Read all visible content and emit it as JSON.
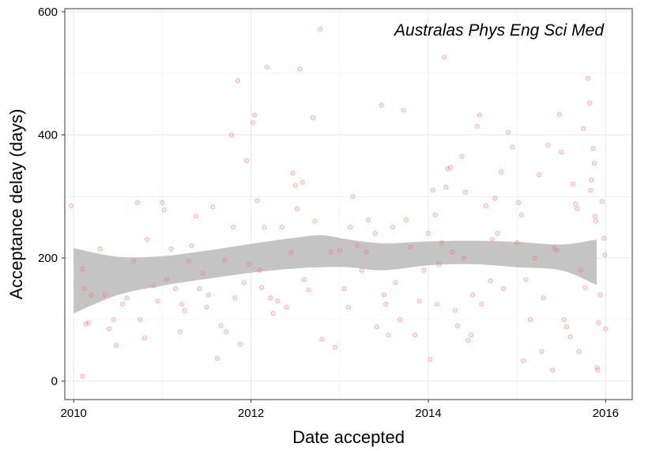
{
  "chart_data": {
    "type": "scatter",
    "annotation": "Australas Phys Eng Sci Med",
    "xlabel": "Date accepted",
    "ylabel": "Acceptance delay (days)",
    "x_ticks": [
      "2010",
      "2012",
      "2014",
      "2016"
    ],
    "y_ticks": [
      "0",
      "200",
      "400",
      "600"
    ],
    "xlim": [
      2009.9,
      2016.3
    ],
    "ylim": [
      -30,
      605
    ],
    "grid": true,
    "colors": {
      "points": "#f8766d",
      "band": "#c4c4c4",
      "border": "#666666",
      "grid": "#ebebeb"
    },
    "smooth_band": {
      "x": [
        2010.0,
        2010.5,
        2011.0,
        2011.5,
        2012.0,
        2012.5,
        2012.8,
        2013.1,
        2013.5,
        2014.0,
        2014.5,
        2015.0,
        2015.5,
        2015.9
      ],
      "upper": [
        216,
        202,
        203,
        212,
        223,
        233,
        237,
        230,
        224,
        227,
        228,
        226,
        222,
        230
      ],
      "lower": [
        110,
        140,
        155,
        166,
        176,
        183,
        185,
        185,
        180,
        188,
        190,
        185,
        180,
        156
      ]
    },
    "points": [
      {
        "x": 2009.97,
        "y": 285
      },
      {
        "x": 2010.1,
        "y": 182
      },
      {
        "x": 2010.12,
        "y": 150
      },
      {
        "x": 2010.14,
        "y": 93
      },
      {
        "x": 2010.17,
        "y": 95
      },
      {
        "x": 2010.1,
        "y": 8
      },
      {
        "x": 2010.2,
        "y": 140
      },
      {
        "x": 2010.3,
        "y": 215
      },
      {
        "x": 2010.35,
        "y": 140
      },
      {
        "x": 2010.4,
        "y": 85
      },
      {
        "x": 2010.45,
        "y": 100
      },
      {
        "x": 2010.48,
        "y": 58
      },
      {
        "x": 2010.55,
        "y": 125
      },
      {
        "x": 2010.6,
        "y": 135
      },
      {
        "x": 2010.68,
        "y": 195
      },
      {
        "x": 2010.72,
        "y": 290
      },
      {
        "x": 2010.75,
        "y": 100
      },
      {
        "x": 2010.8,
        "y": 70
      },
      {
        "x": 2010.83,
        "y": 230
      },
      {
        "x": 2010.9,
        "y": 155
      },
      {
        "x": 2010.95,
        "y": 130
      },
      {
        "x": 2011.0,
        "y": 290
      },
      {
        "x": 2011.02,
        "y": 278
      },
      {
        "x": 2011.05,
        "y": 165
      },
      {
        "x": 2011.1,
        "y": 215
      },
      {
        "x": 2011.15,
        "y": 150
      },
      {
        "x": 2011.2,
        "y": 80
      },
      {
        "x": 2011.22,
        "y": 125
      },
      {
        "x": 2011.25,
        "y": 115
      },
      {
        "x": 2011.3,
        "y": 195
      },
      {
        "x": 2011.33,
        "y": 220
      },
      {
        "x": 2011.38,
        "y": 268
      },
      {
        "x": 2011.42,
        "y": 150
      },
      {
        "x": 2011.46,
        "y": 175
      },
      {
        "x": 2011.5,
        "y": 120
      },
      {
        "x": 2011.52,
        "y": 140
      },
      {
        "x": 2011.57,
        "y": 283
      },
      {
        "x": 2011.62,
        "y": 37
      },
      {
        "x": 2011.66,
        "y": 90
      },
      {
        "x": 2011.7,
        "y": 196
      },
      {
        "x": 2011.72,
        "y": 80
      },
      {
        "x": 2011.78,
        "y": 400
      },
      {
        "x": 2011.8,
        "y": 250
      },
      {
        "x": 2011.82,
        "y": 135
      },
      {
        "x": 2011.85,
        "y": 488
      },
      {
        "x": 2011.88,
        "y": 60
      },
      {
        "x": 2011.92,
        "y": 160
      },
      {
        "x": 2011.95,
        "y": 358
      },
      {
        "x": 2011.98,
        "y": 190
      },
      {
        "x": 2012.02,
        "y": 420
      },
      {
        "x": 2012.04,
        "y": 432
      },
      {
        "x": 2012.07,
        "y": 293
      },
      {
        "x": 2012.1,
        "y": 180
      },
      {
        "x": 2012.12,
        "y": 152
      },
      {
        "x": 2012.15,
        "y": 250
      },
      {
        "x": 2012.18,
        "y": 510
      },
      {
        "x": 2012.22,
        "y": 135
      },
      {
        "x": 2012.25,
        "y": 110
      },
      {
        "x": 2012.3,
        "y": 130
      },
      {
        "x": 2012.35,
        "y": 250
      },
      {
        "x": 2012.4,
        "y": 120
      },
      {
        "x": 2012.45,
        "y": 209
      },
      {
        "x": 2012.47,
        "y": 338
      },
      {
        "x": 2012.5,
        "y": 318
      },
      {
        "x": 2012.52,
        "y": 280
      },
      {
        "x": 2012.55,
        "y": 507
      },
      {
        "x": 2012.58,
        "y": 323
      },
      {
        "x": 2012.6,
        "y": 165
      },
      {
        "x": 2012.65,
        "y": 148
      },
      {
        "x": 2012.7,
        "y": 428
      },
      {
        "x": 2012.72,
        "y": 260
      },
      {
        "x": 2012.78,
        "y": 572
      },
      {
        "x": 2012.8,
        "y": 68
      },
      {
        "x": 2012.9,
        "y": 210
      },
      {
        "x": 2012.95,
        "y": 55
      },
      {
        "x": 2013.0,
        "y": 212
      },
      {
        "x": 2013.05,
        "y": 150
      },
      {
        "x": 2013.1,
        "y": 120
      },
      {
        "x": 2013.12,
        "y": 250
      },
      {
        "x": 2013.15,
        "y": 300
      },
      {
        "x": 2013.2,
        "y": 220
      },
      {
        "x": 2013.25,
        "y": 180
      },
      {
        "x": 2013.3,
        "y": 210
      },
      {
        "x": 2013.32,
        "y": 262
      },
      {
        "x": 2013.4,
        "y": 240
      },
      {
        "x": 2013.42,
        "y": 88
      },
      {
        "x": 2013.47,
        "y": 448
      },
      {
        "x": 2013.5,
        "y": 140
      },
      {
        "x": 2013.52,
        "y": 125
      },
      {
        "x": 2013.55,
        "y": 75
      },
      {
        "x": 2013.6,
        "y": 250
      },
      {
        "x": 2013.63,
        "y": 160
      },
      {
        "x": 2013.68,
        "y": 100
      },
      {
        "x": 2013.72,
        "y": 440
      },
      {
        "x": 2013.75,
        "y": 262
      },
      {
        "x": 2013.8,
        "y": 218
      },
      {
        "x": 2013.85,
        "y": 75
      },
      {
        "x": 2013.9,
        "y": 130
      },
      {
        "x": 2013.95,
        "y": 180
      },
      {
        "x": 2014.0,
        "y": 240
      },
      {
        "x": 2014.02,
        "y": 35
      },
      {
        "x": 2014.05,
        "y": 310
      },
      {
        "x": 2014.08,
        "y": 270
      },
      {
        "x": 2014.1,
        "y": 125
      },
      {
        "x": 2014.12,
        "y": 190
      },
      {
        "x": 2014.15,
        "y": 225
      },
      {
        "x": 2014.18,
        "y": 526
      },
      {
        "x": 2014.2,
        "y": 315
      },
      {
        "x": 2014.22,
        "y": 345
      },
      {
        "x": 2014.25,
        "y": 347
      },
      {
        "x": 2014.27,
        "y": 210
      },
      {
        "x": 2014.3,
        "y": 115
      },
      {
        "x": 2014.33,
        "y": 90
      },
      {
        "x": 2014.38,
        "y": 365
      },
      {
        "x": 2014.4,
        "y": 200
      },
      {
        "x": 2014.42,
        "y": 307
      },
      {
        "x": 2014.45,
        "y": 66
      },
      {
        "x": 2014.48,
        "y": 75
      },
      {
        "x": 2014.5,
        "y": 140
      },
      {
        "x": 2014.55,
        "y": 414
      },
      {
        "x": 2014.58,
        "y": 432
      },
      {
        "x": 2014.6,
        "y": 125
      },
      {
        "x": 2014.65,
        "y": 285
      },
      {
        "x": 2014.7,
        "y": 163
      },
      {
        "x": 2014.72,
        "y": 230
      },
      {
        "x": 2014.75,
        "y": 297
      },
      {
        "x": 2014.78,
        "y": 240
      },
      {
        "x": 2014.82,
        "y": 340
      },
      {
        "x": 2014.85,
        "y": 150
      },
      {
        "x": 2014.9,
        "y": 404
      },
      {
        "x": 2014.95,
        "y": 380
      },
      {
        "x": 2015.0,
        "y": 225
      },
      {
        "x": 2015.02,
        "y": 290
      },
      {
        "x": 2015.05,
        "y": 270
      },
      {
        "x": 2015.07,
        "y": 33
      },
      {
        "x": 2015.1,
        "y": 165
      },
      {
        "x": 2015.15,
        "y": 100
      },
      {
        "x": 2015.2,
        "y": 200
      },
      {
        "x": 2015.25,
        "y": 335
      },
      {
        "x": 2015.28,
        "y": 48
      },
      {
        "x": 2015.3,
        "y": 135
      },
      {
        "x": 2015.35,
        "y": 383
      },
      {
        "x": 2015.4,
        "y": 18
      },
      {
        "x": 2015.42,
        "y": 216
      },
      {
        "x": 2015.45,
        "y": 213
      },
      {
        "x": 2015.48,
        "y": 433
      },
      {
        "x": 2015.5,
        "y": 372
      },
      {
        "x": 2015.53,
        "y": 100
      },
      {
        "x": 2015.56,
        "y": 88
      },
      {
        "x": 2015.6,
        "y": 72
      },
      {
        "x": 2015.63,
        "y": 320
      },
      {
        "x": 2015.66,
        "y": 288
      },
      {
        "x": 2015.68,
        "y": 280
      },
      {
        "x": 2015.7,
        "y": 48
      },
      {
        "x": 2015.72,
        "y": 180
      },
      {
        "x": 2015.75,
        "y": 410
      },
      {
        "x": 2015.77,
        "y": 152
      },
      {
        "x": 2015.8,
        "y": 492
      },
      {
        "x": 2015.82,
        "y": 452
      },
      {
        "x": 2015.83,
        "y": 310
      },
      {
        "x": 2015.84,
        "y": 327
      },
      {
        "x": 2015.86,
        "y": 378
      },
      {
        "x": 2015.87,
        "y": 354
      },
      {
        "x": 2015.88,
        "y": 268
      },
      {
        "x": 2015.89,
        "y": 260
      },
      {
        "x": 2015.9,
        "y": 22
      },
      {
        "x": 2015.91,
        "y": 18
      },
      {
        "x": 2015.92,
        "y": 95
      },
      {
        "x": 2015.94,
        "y": 140
      },
      {
        "x": 2015.96,
        "y": 292
      },
      {
        "x": 2015.98,
        "y": 232
      },
      {
        "x": 2015.99,
        "y": 205
      },
      {
        "x": 2016.0,
        "y": 85
      }
    ]
  }
}
